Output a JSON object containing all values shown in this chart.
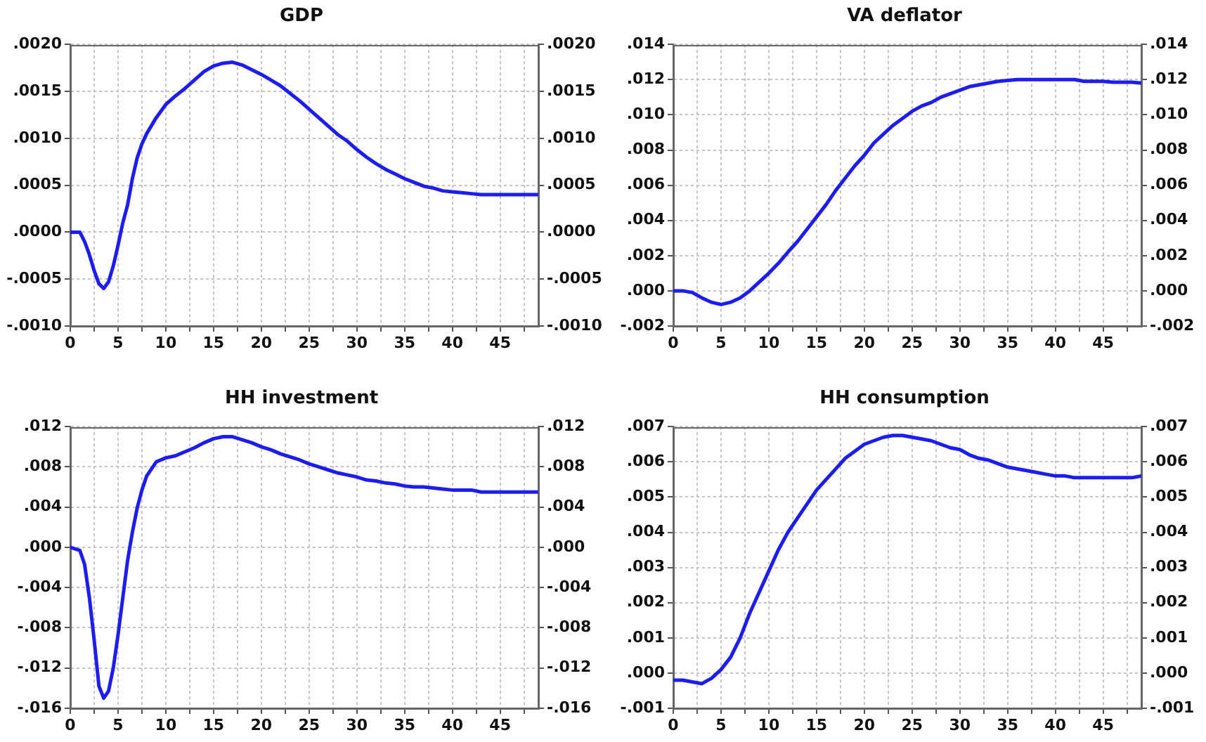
{
  "chart_data": [
    {
      "type": "line",
      "title": "GDP",
      "x": [
        0,
        1,
        1.5,
        2,
        2.5,
        3,
        3.5,
        4,
        4.5,
        5,
        5.5,
        6,
        6.5,
        7,
        7.5,
        8,
        9,
        10,
        11,
        12,
        13,
        14,
        15,
        16,
        17,
        18,
        19,
        20,
        21,
        22,
        23,
        24,
        25,
        26,
        27,
        28,
        29,
        30,
        31,
        32,
        33,
        34,
        35,
        36,
        37,
        38,
        39,
        40,
        41,
        42,
        43,
        44,
        45,
        46,
        47,
        48,
        49
      ],
      "values": [
        0,
        0,
        -0.0001,
        -0.00024,
        -0.00041,
        -0.00055,
        -0.0006,
        -0.00053,
        -0.00036,
        -0.00014,
        0.0001,
        0.00029,
        0.00057,
        0.00079,
        0.00094,
        0.00105,
        0.00122,
        0.00136,
        0.00145,
        0.00153,
        0.00162,
        0.00171,
        0.00177,
        0.0018,
        0.00181,
        0.00178,
        0.00173,
        0.00168,
        0.00162,
        0.00156,
        0.00148,
        0.0014,
        0.00131,
        0.00122,
        0.00113,
        0.00104,
        0.00097,
        0.00088,
        0.0008,
        0.00073,
        0.00067,
        0.00062,
        0.00057,
        0.00053,
        0.00049,
        0.00047,
        0.00044,
        0.00043,
        0.00042,
        0.00041,
        0.0004,
        0.0004,
        0.0004,
        0.0004,
        0.0004,
        0.0004,
        0.0004
      ],
      "color": "#1c1cf5",
      "xlim": [
        0,
        49
      ],
      "xticks": [
        0,
        {
          "value": 2.5,
          "label": null
        },
        5,
        {
          "value": 7.5,
          "label": null
        },
        10,
        {
          "value": 12.5,
          "label": null
        },
        15,
        {
          "value": 17.5,
          "label": null
        },
        20,
        {
          "value": 22.5,
          "label": null
        },
        25,
        {
          "value": 27.5,
          "label": null
        },
        30,
        {
          "value": 32.5,
          "label": null
        },
        35,
        {
          "value": 37.5,
          "label": null
        },
        40,
        {
          "value": 42.5,
          "label": null
        },
        45,
        {
          "value": 47.5,
          "label": null
        }
      ],
      "ylim": [
        -0.001,
        0.002
      ],
      "yticks": [
        {
          "value": -0.001,
          "label": "-.0010"
        },
        {
          "value": -0.0005,
          "label": "-.0005"
        },
        {
          "value": 0,
          "label": ".0000"
        },
        {
          "value": 0.0005,
          "label": ".0005"
        },
        {
          "value": 0.001,
          "label": ".0010"
        },
        {
          "value": 0.0015,
          "label": ".0015"
        },
        {
          "value": 0.002,
          "label": ".0020"
        }
      ],
      "y2lim": [
        -0.001,
        0.002
      ],
      "y2ticks": [
        {
          "value": -0.001,
          "label": "-.0010"
        },
        {
          "value": -0.0005,
          "label": "-.0005"
        },
        {
          "value": 0,
          "label": ".0000"
        },
        {
          "value": 0.0005,
          "label": ".0005"
        },
        {
          "value": 0.001,
          "label": ".0010"
        },
        {
          "value": 0.0015,
          "label": ".0015"
        },
        {
          "value": 0.002,
          "label": ".0020"
        }
      ],
      "grid": true
    },
    {
      "type": "line",
      "title": "VA deflator",
      "x": [
        0,
        1,
        2,
        3,
        4,
        5,
        6,
        7,
        8,
        9,
        10,
        11,
        12,
        13,
        14,
        15,
        16,
        17,
        18,
        19,
        20,
        21,
        22,
        23,
        24,
        25,
        26,
        27,
        28,
        29,
        30,
        31,
        32,
        33,
        34,
        35,
        36,
        37,
        38,
        39,
        40,
        41,
        42,
        43,
        44,
        45,
        46,
        47,
        48,
        49
      ],
      "values": [
        0,
        0,
        -0.0001,
        -0.0004,
        -0.00065,
        -0.00078,
        -0.00065,
        -0.0004,
        0,
        0.0005,
        0.001,
        0.00156,
        0.0022,
        0.0028,
        0.0035,
        0.0042,
        0.0049,
        0.0057,
        0.0064,
        0.0071,
        0.0077,
        0.0084,
        0.0089,
        0.0094,
        0.0098,
        0.0102,
        0.0105,
        0.0107,
        0.011,
        0.0112,
        0.0114,
        0.0116,
        0.0117,
        0.0118,
        0.0119,
        0.01195,
        0.012,
        0.012,
        0.012,
        0.012,
        0.012,
        0.012,
        0.012,
        0.0119,
        0.0119,
        0.0119,
        0.01185,
        0.01185,
        0.01185,
        0.0118
      ],
      "color": "#1c1cf5",
      "xlim": [
        0,
        49
      ],
      "xticks": [
        0,
        {
          "value": 2.5,
          "label": null
        },
        5,
        {
          "value": 7.5,
          "label": null
        },
        10,
        {
          "value": 12.5,
          "label": null
        },
        15,
        {
          "value": 17.5,
          "label": null
        },
        20,
        {
          "value": 22.5,
          "label": null
        },
        25,
        {
          "value": 27.5,
          "label": null
        },
        30,
        {
          "value": 32.5,
          "label": null
        },
        35,
        {
          "value": 37.5,
          "label": null
        },
        40,
        {
          "value": 42.5,
          "label": null
        },
        45,
        {
          "value": 47.5,
          "label": null
        }
      ],
      "ylim": [
        -0.002,
        0.014
      ],
      "yticks": [
        {
          "value": -0.002,
          "label": "-.002"
        },
        {
          "value": 0,
          "label": ".000"
        },
        {
          "value": 0.002,
          "label": ".002"
        },
        {
          "value": 0.004,
          "label": ".004"
        },
        {
          "value": 0.006,
          "label": ".006"
        },
        {
          "value": 0.008,
          "label": ".008"
        },
        {
          "value": 0.01,
          "label": ".010"
        },
        {
          "value": 0.012,
          "label": ".012"
        },
        {
          "value": 0.014,
          "label": ".014"
        }
      ],
      "y2lim": [
        -0.002,
        0.014
      ],
      "y2ticks": [
        {
          "value": -0.002,
          "label": "-.002"
        },
        {
          "value": 0,
          "label": ".000"
        },
        {
          "value": 0.002,
          "label": ".002"
        },
        {
          "value": 0.004,
          "label": ".004"
        },
        {
          "value": 0.006,
          "label": ".006"
        },
        {
          "value": 0.008,
          "label": ".008"
        },
        {
          "value": 0.01,
          "label": ".010"
        },
        {
          "value": 0.012,
          "label": ".012"
        },
        {
          "value": 0.014,
          "label": ".014"
        }
      ],
      "grid": true
    },
    {
      "type": "line",
      "title": "HH investment",
      "x": [
        0,
        1,
        1.5,
        2,
        2.5,
        3,
        3.5,
        4,
        4.5,
        5,
        5.5,
        6,
        6.5,
        7,
        7.5,
        8,
        9,
        10,
        11,
        12,
        13,
        14,
        15,
        16,
        17,
        18,
        19,
        20,
        21,
        22,
        23,
        24,
        25,
        26,
        27,
        28,
        29,
        30,
        31,
        32,
        33,
        34,
        35,
        36,
        37,
        38,
        39,
        40,
        41,
        42,
        43,
        44,
        45,
        46,
        47,
        48,
        49
      ],
      "values": [
        0,
        -0.0003,
        -0.0017,
        -0.005,
        -0.0092,
        -0.0138,
        -0.015,
        -0.0143,
        -0.012,
        -0.0087,
        -0.005,
        -0.0013,
        0.0015,
        0.0039,
        0.0057,
        0.0071,
        0.0085,
        0.0089,
        0.0091,
        0.0095,
        0.0099,
        0.0104,
        0.0108,
        0.011,
        0.011,
        0.0107,
        0.0104,
        0.01,
        0.0097,
        0.0093,
        0.009,
        0.0087,
        0.0083,
        0.008,
        0.0077,
        0.0074,
        0.0072,
        0.007,
        0.0067,
        0.0066,
        0.0064,
        0.0063,
        0.0061,
        0.006,
        0.006,
        0.0059,
        0.0058,
        0.0057,
        0.0057,
        0.0057,
        0.0055,
        0.0055,
        0.0055,
        0.0055,
        0.0055,
        0.0055,
        0.0055
      ],
      "color": "#1c1cf5",
      "xlim": [
        0,
        49
      ],
      "xticks": [
        0,
        {
          "value": 2.5,
          "label": null
        },
        5,
        {
          "value": 7.5,
          "label": null
        },
        10,
        {
          "value": 12.5,
          "label": null
        },
        15,
        {
          "value": 17.5,
          "label": null
        },
        20,
        {
          "value": 22.5,
          "label": null
        },
        25,
        {
          "value": 27.5,
          "label": null
        },
        30,
        {
          "value": 32.5,
          "label": null
        },
        35,
        {
          "value": 37.5,
          "label": null
        },
        40,
        {
          "value": 42.5,
          "label": null
        },
        45,
        {
          "value": 47.5,
          "label": null
        }
      ],
      "ylim": [
        -0.016,
        0.012
      ],
      "yticks": [
        {
          "value": -0.016,
          "label": "-.016"
        },
        {
          "value": -0.012,
          "label": "-.012"
        },
        {
          "value": -0.008,
          "label": "-.008"
        },
        {
          "value": -0.004,
          "label": "-.004"
        },
        {
          "value": 0,
          "label": ".000"
        },
        {
          "value": 0.004,
          "label": ".004"
        },
        {
          "value": 0.008,
          "label": ".008"
        },
        {
          "value": 0.012,
          "label": ".012"
        }
      ],
      "y2lim": [
        -0.016,
        0.012
      ],
      "y2ticks": [
        {
          "value": -0.016,
          "label": "-.016"
        },
        {
          "value": -0.012,
          "label": "-.012"
        },
        {
          "value": -0.008,
          "label": "-.008"
        },
        {
          "value": -0.004,
          "label": "-.004"
        },
        {
          "value": 0,
          "label": ".000"
        },
        {
          "value": 0.004,
          "label": ".004"
        },
        {
          "value": 0.008,
          "label": ".008"
        },
        {
          "value": 0.012,
          "label": ".012"
        }
      ],
      "grid": true
    },
    {
      "type": "line",
      "title": "HH consumption",
      "x": [
        0,
        1,
        2,
        3,
        4,
        5,
        6,
        7,
        8,
        9,
        10,
        11,
        12,
        13,
        14,
        15,
        16,
        17,
        18,
        19,
        20,
        21,
        22,
        23,
        24,
        25,
        26,
        27,
        28,
        29,
        30,
        31,
        32,
        33,
        34,
        35,
        36,
        37,
        38,
        39,
        40,
        41,
        42,
        43,
        44,
        45,
        46,
        47,
        48,
        49
      ],
      "values": [
        -0.0002,
        -0.0002,
        -0.00025,
        -0.0003,
        -0.00015,
        0.0001,
        0.00045,
        0.001,
        0.0017,
        0.0023,
        0.0029,
        0.0035,
        0.004,
        0.0044,
        0.0048,
        0.0052,
        0.0055,
        0.0058,
        0.0061,
        0.0063,
        0.0065,
        0.0066,
        0.0067,
        0.00675,
        0.00675,
        0.0067,
        0.00665,
        0.0066,
        0.0065,
        0.0064,
        0.00635,
        0.0062,
        0.0061,
        0.00605,
        0.00595,
        0.00585,
        0.0058,
        0.00575,
        0.0057,
        0.00565,
        0.0056,
        0.0056,
        0.00555,
        0.00555,
        0.00555,
        0.00555,
        0.00555,
        0.00555,
        0.00555,
        0.0056
      ],
      "color": "#1c1cf5",
      "xlim": [
        0,
        49
      ],
      "xticks": [
        0,
        {
          "value": 2.5,
          "label": null
        },
        5,
        {
          "value": 7.5,
          "label": null
        },
        10,
        {
          "value": 12.5,
          "label": null
        },
        15,
        {
          "value": 17.5,
          "label": null
        },
        20,
        {
          "value": 22.5,
          "label": null
        },
        25,
        {
          "value": 27.5,
          "label": null
        },
        30,
        {
          "value": 32.5,
          "label": null
        },
        35,
        {
          "value": 37.5,
          "label": null
        },
        40,
        {
          "value": 42.5,
          "label": null
        },
        45,
        {
          "value": 47.5,
          "label": null
        }
      ],
      "ylim": [
        -0.001,
        0.007
      ],
      "yticks": [
        {
          "value": -0.001,
          "label": "-.001"
        },
        {
          "value": 0,
          "label": ".000"
        },
        {
          "value": 0.001,
          "label": ".001"
        },
        {
          "value": 0.002,
          "label": ".002"
        },
        {
          "value": 0.003,
          "label": ".003"
        },
        {
          "value": 0.004,
          "label": ".004"
        },
        {
          "value": 0.005,
          "label": ".005"
        },
        {
          "value": 0.006,
          "label": ".006"
        },
        {
          "value": 0.007,
          "label": ".007"
        }
      ],
      "y2lim": [
        -0.001,
        0.007
      ],
      "y2ticks": [
        {
          "value": -0.001,
          "label": "-.001"
        },
        {
          "value": 0,
          "label": ".000"
        },
        {
          "value": 0.001,
          "label": ".001"
        },
        {
          "value": 0.002,
          "label": ".002"
        },
        {
          "value": 0.003,
          "label": ".003"
        },
        {
          "value": 0.004,
          "label": ".004"
        },
        {
          "value": 0.005,
          "label": ".005"
        },
        {
          "value": 0.006,
          "label": ".006"
        },
        {
          "value": 0.007,
          "label": ".007"
        }
      ],
      "grid": true
    }
  ]
}
